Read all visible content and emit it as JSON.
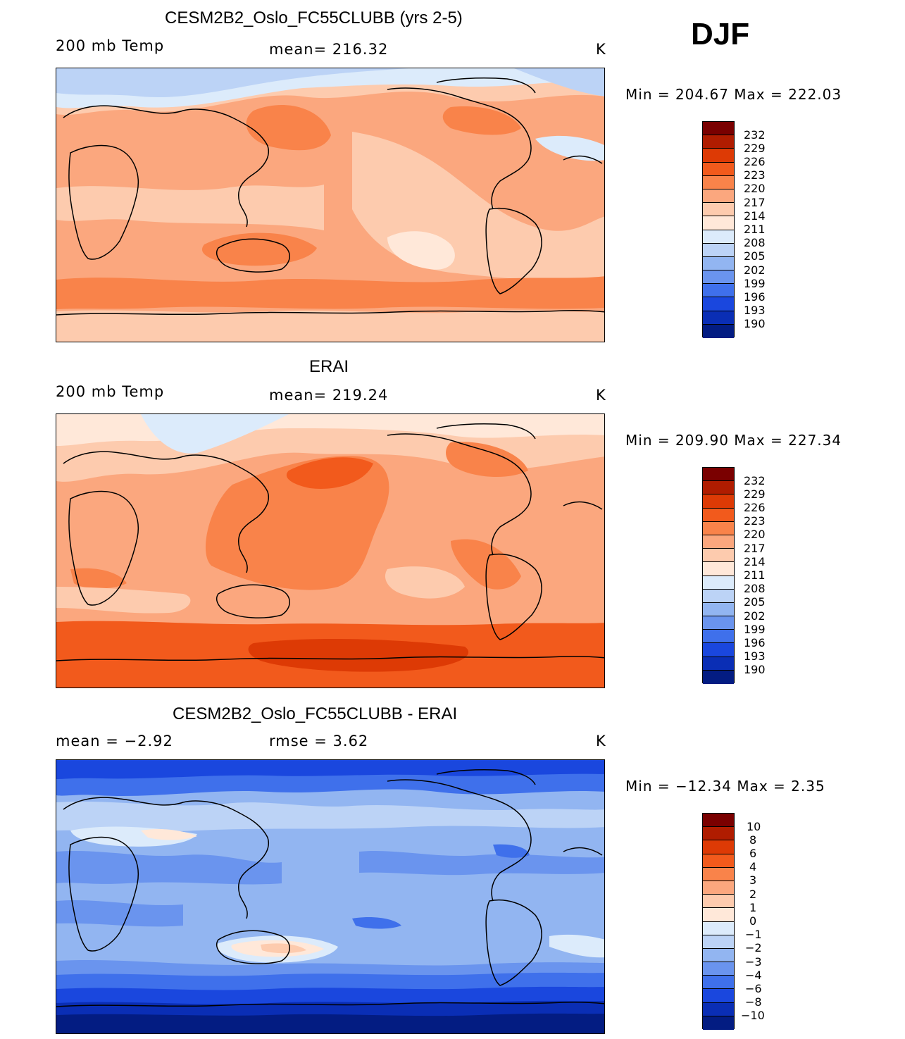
{
  "season": "DJF",
  "units": "K",
  "panels": [
    {
      "title": "CESM2B2_Oslo_FC55CLUBB (yrs 2-5)",
      "left_label": "200 mb Temp",
      "center_label": "mean= 216.32",
      "units": "K",
      "minmax": "Min = 204.67 Max = 222.03",
      "colorbar_ticks": [
        "232",
        "229",
        "226",
        "223",
        "220",
        "217",
        "214",
        "211",
        "208",
        "205",
        "202",
        "199",
        "196",
        "193",
        "190"
      ]
    },
    {
      "title": "ERAI",
      "left_label": "200 mb Temp",
      "center_label": "mean= 219.24",
      "units": "K",
      "minmax": "Min = 209.90 Max = 227.34",
      "colorbar_ticks": [
        "232",
        "229",
        "226",
        "223",
        "220",
        "217",
        "214",
        "211",
        "208",
        "205",
        "202",
        "199",
        "196",
        "193",
        "190"
      ]
    },
    {
      "title": "CESM2B2_Oslo_FC55CLUBB - ERAI",
      "left_label": "mean =   −2.92",
      "center_label": "rmse =    3.62",
      "units": "K",
      "minmax": "Min = −12.34 Max =    2.35",
      "colorbar_ticks": [
        "10",
        "8",
        "6",
        "4",
        "3",
        "2",
        "1",
        "0",
        "−1",
        "−2",
        "−3",
        "−4",
        "−6",
        "−8",
        "−10"
      ]
    }
  ],
  "colorbar_colors": [
    "#7a0000",
    "#b01c00",
    "#dd3a05",
    "#f25a1c",
    "#f9834a",
    "#fba77e",
    "#fdcbae",
    "#ffe8d9",
    "#dcebfb",
    "#bcd3f6",
    "#92b5f1",
    "#6a94ee",
    "#3f70eb",
    "#1a47de",
    "#0a2eb5",
    "#031c82"
  ],
  "chart_data": [
    {
      "type": "heatmap",
      "title": "CESM2B2_Oslo_FC55CLUBB (yrs 2-5)",
      "variable": "200 mb Temp",
      "units": "K",
      "mean": 216.32,
      "min": 204.67,
      "max": 222.03,
      "levels": [
        190,
        193,
        196,
        199,
        202,
        205,
        208,
        211,
        214,
        217,
        220,
        223,
        226,
        229,
        232
      ]
    },
    {
      "type": "heatmap",
      "title": "ERAI",
      "variable": "200 mb Temp",
      "units": "K",
      "mean": 219.24,
      "min": 209.9,
      "max": 227.34,
      "levels": [
        190,
        193,
        196,
        199,
        202,
        205,
        208,
        211,
        214,
        217,
        220,
        223,
        226,
        229,
        232
      ]
    },
    {
      "type": "heatmap",
      "title": "CESM2B2_Oslo_FC55CLUBB - ERAI",
      "units": "K",
      "mean": -2.92,
      "rmse": 3.62,
      "min": -12.34,
      "max": 2.35,
      "levels": [
        -10,
        -8,
        -6,
        -4,
        -3,
        -2,
        -1,
        0,
        1,
        2,
        3,
        4,
        6,
        8,
        10
      ]
    }
  ]
}
